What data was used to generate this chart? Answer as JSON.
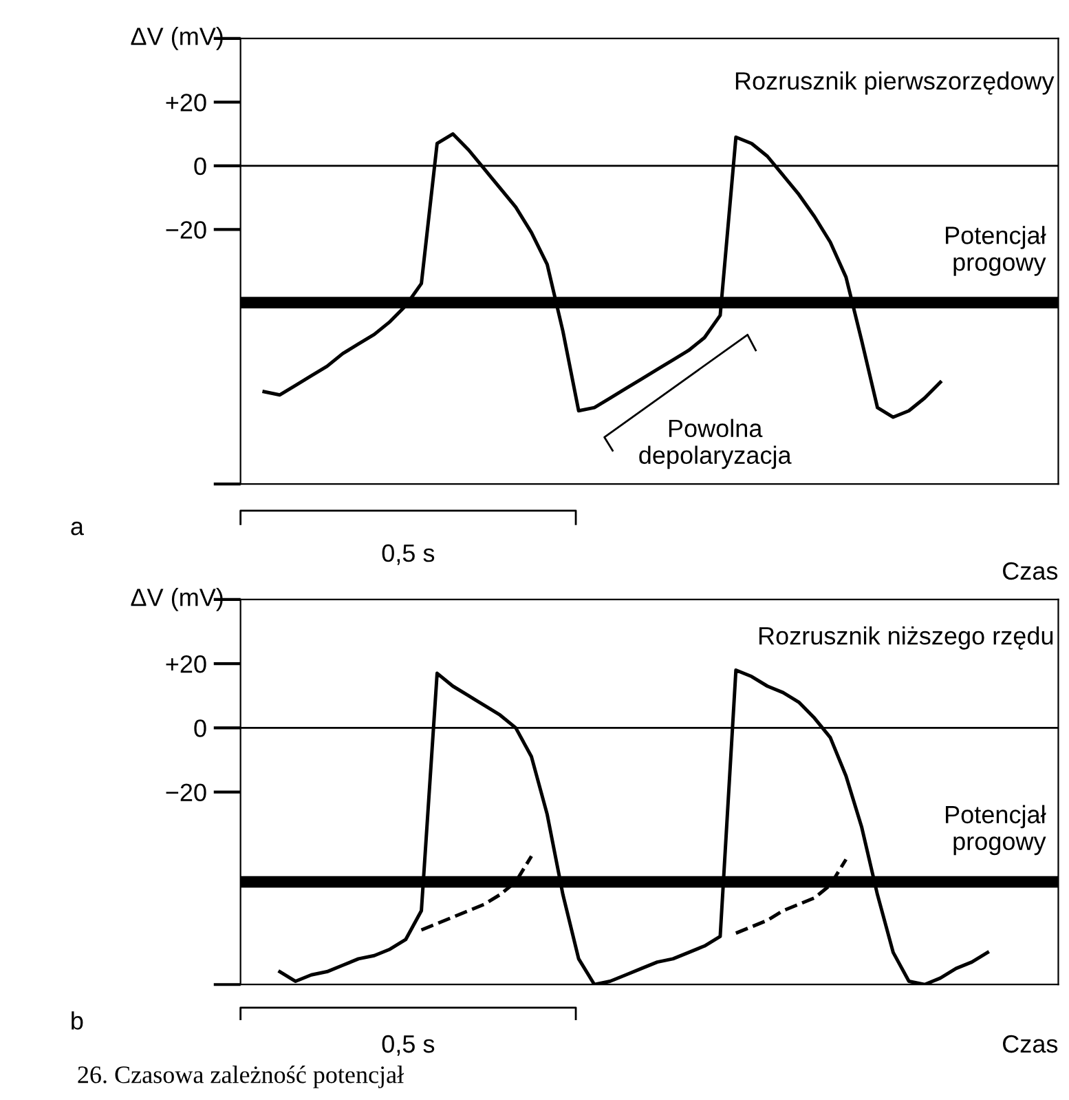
{
  "chart_data": [
    {
      "type": "line",
      "title": "Rozrusznik pierwszorzędowy",
      "xlabel": "Czas",
      "ylabel": "ΔV (mV)",
      "categories": [
        null,
        null,
        null,
        null,
        null,
        null,
        null,
        null,
        null,
        null,
        null,
        null,
        null,
        null,
        null,
        null,
        null,
        null,
        null,
        null,
        null,
        null,
        null,
        null,
        null,
        null,
        null,
        null,
        null,
        null,
        null,
        null,
        null,
        null,
        null,
        null,
        null,
        null,
        null,
        null,
        null,
        null,
        null,
        null,
        null,
        null,
        null,
        null,
        null,
        null,
        null,
        null
      ],
      "series": [
        {
          "color": "#000000",
          "values": [
            null,
            -71,
            -72,
            -69,
            -66,
            -63,
            -59,
            -56,
            -53,
            -49,
            -44,
            -37,
            7,
            10,
            5,
            -1,
            -7,
            -13,
            -21,
            -31,
            -52,
            -77,
            -76,
            -73,
            -70,
            -67,
            -64,
            -61,
            -58,
            -54,
            -47,
            9,
            7,
            3,
            -3,
            -9,
            -16,
            -24,
            -35,
            -55,
            -76,
            -79,
            -77,
            -73,
            -68,
            null,
            null,
            null,
            null,
            null,
            null,
            null
          ]
        }
      ],
      "ylim": [
        -100,
        40
      ],
      "yticks": [
        {
          "value": 40,
          "label": null
        },
        {
          "value": 20,
          "label": "+20"
        },
        0,
        {
          "value": -20,
          "label": "−20"
        },
        {
          "value": -100,
          "label": null
        }
      ],
      "ref_lines": [
        {
          "axis": "y",
          "value": 0,
          "color": "#000000"
        },
        {
          "axis": "y",
          "value": -43,
          "label": "Potencjał\nprogowy",
          "color": "#000000"
        }
      ],
      "annotations": [
        "a",
        "0,5 s",
        "Powolna\ndepolaryzacja"
      ],
      "marker": "none",
      "line_style": "solid"
    },
    {
      "type": "line",
      "title": "Rozrusznik niższego rzędu",
      "xlabel": "Czas",
      "ylabel": "ΔV (mV)",
      "categories": [
        null,
        null,
        null,
        null,
        null,
        null,
        null,
        null,
        null,
        null,
        null,
        null,
        null,
        null,
        null,
        null,
        null,
        null,
        null,
        null,
        null,
        null,
        null,
        null,
        null,
        null,
        null,
        null,
        null,
        null,
        null,
        null,
        null,
        null,
        null,
        null,
        null,
        null,
        null,
        null,
        null,
        null,
        null,
        null,
        null,
        null,
        null,
        null,
        null,
        null,
        null,
        null
      ],
      "series": [
        {
          "color": "#000000",
          "values": [
            null,
            null,
            -76,
            -79,
            -77,
            -76,
            -74,
            -72,
            -71,
            -69,
            -66,
            -57,
            17,
            13,
            10,
            7,
            4,
            0,
            -9,
            -27,
            -52,
            -72,
            -80,
            -79,
            -77,
            -75,
            -73,
            -72,
            -70,
            -68,
            -65,
            18,
            16,
            13,
            11,
            8,
            3,
            -3,
            -15,
            -31,
            -52,
            -70,
            -79,
            -80,
            -78,
            -75,
            -73,
            -70,
            null,
            null,
            null,
            null
          ]
        },
        {
          "color": "#000000",
          "line_style": "dashed",
          "values": [
            null,
            null,
            null,
            null,
            null,
            null,
            null,
            null,
            null,
            null,
            null,
            -63,
            -61,
            -59,
            -57,
            -55,
            -52,
            -48,
            -40,
            null,
            null,
            null,
            null,
            null,
            null,
            null,
            null,
            null,
            null,
            null,
            null,
            -64,
            -62,
            -60,
            -57,
            -55,
            -53,
            -49,
            -41,
            null,
            null,
            null,
            null,
            null,
            null,
            null,
            null,
            null,
            null,
            null,
            null,
            null
          ]
        }
      ],
      "ylim": [
        -80,
        40
      ],
      "yticks": [
        {
          "value": 40,
          "label": null
        },
        {
          "value": 20,
          "label": "+20"
        },
        0,
        {
          "value": -20,
          "label": "−20"
        },
        {
          "value": -80,
          "label": null
        }
      ],
      "ref_lines": [
        {
          "axis": "y",
          "value": 0,
          "color": "#000000"
        },
        {
          "axis": "y",
          "value": -48,
          "label": "Potencjał\nprogowy",
          "color": "#000000"
        }
      ],
      "annotations": [
        "b",
        "0,5 s",
        "26. Czasowa zależność potencjał"
      ],
      "marker": "none",
      "line_style": "solid"
    }
  ]
}
